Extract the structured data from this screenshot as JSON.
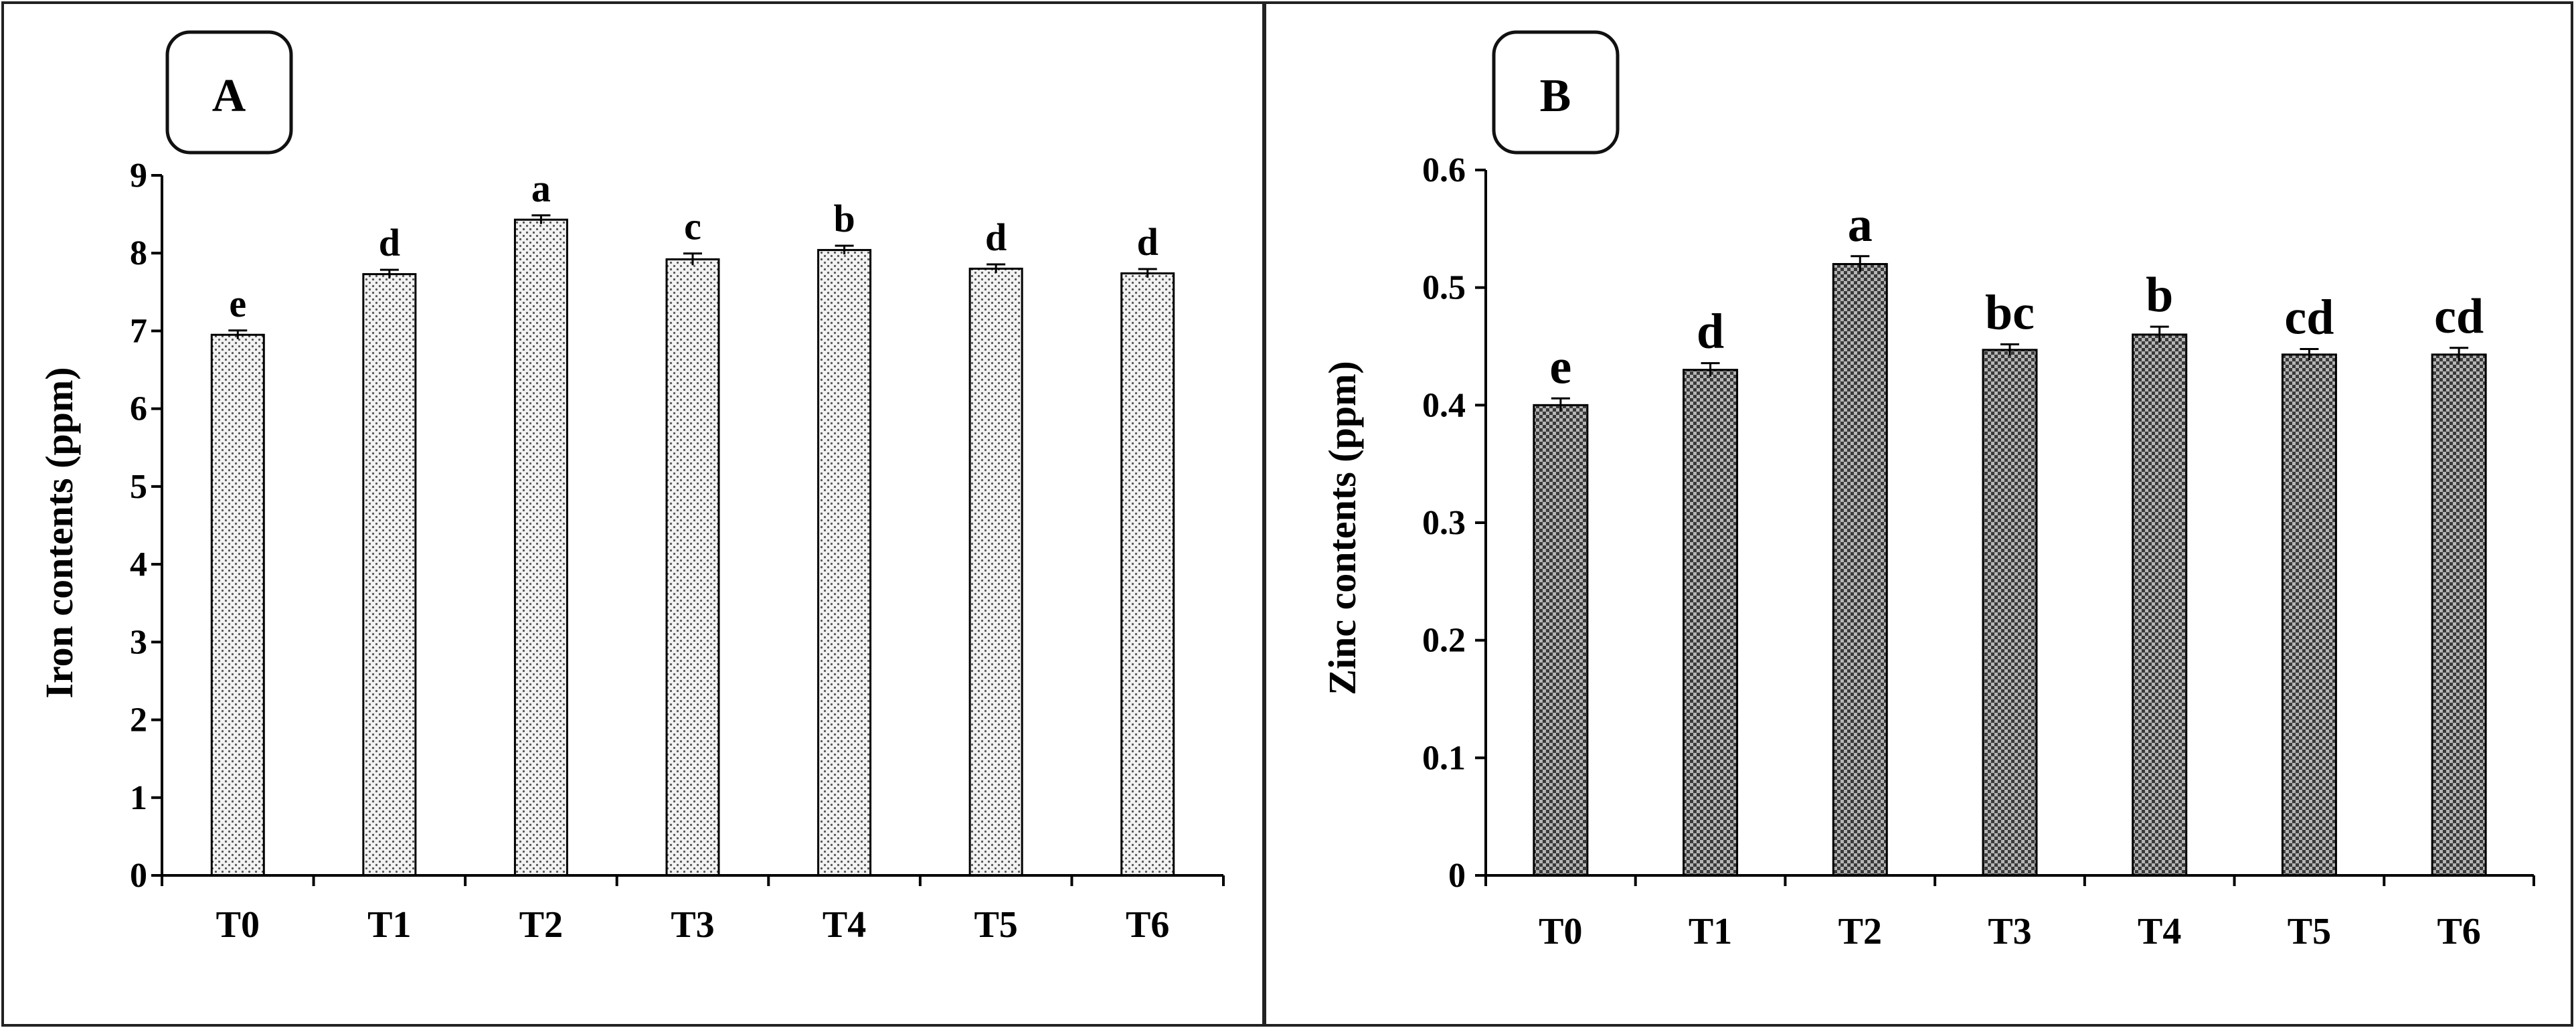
{
  "chart_data": [
    {
      "type": "bar",
      "panel_label": "A",
      "title": "",
      "xlabel": "",
      "ylabel": "Iron contents (ppm)",
      "categories": [
        "T0",
        "T1",
        "T2",
        "T3",
        "T4",
        "T5",
        "T6"
      ],
      "values": [
        6.95,
        7.73,
        8.43,
        7.92,
        8.04,
        7.8,
        7.74
      ],
      "errors": [
        0.03,
        0.03,
        0.03,
        0.05,
        0.03,
        0.03,
        0.03
      ],
      "significance": [
        "e",
        "d",
        "a",
        "c",
        "b",
        "d",
        "d"
      ],
      "ylim": [
        0,
        9
      ],
      "yticks": [
        "0",
        "1",
        "2",
        "3",
        "4",
        "5",
        "6",
        "7",
        "8",
        "9"
      ],
      "grid": false,
      "fill_color": "#efefef"
    },
    {
      "type": "bar",
      "panel_label": "B",
      "title": "",
      "xlabel": "",
      "ylabel": "Zinc contents (ppm)",
      "categories": [
        "T0",
        "T1",
        "T2",
        "T3",
        "T4",
        "T5",
        "T6"
      ],
      "values": [
        0.4,
        0.43,
        0.52,
        0.447,
        0.46,
        0.443,
        0.443
      ],
      "errors": [
        0.004,
        0.004,
        0.005,
        0.003,
        0.005,
        0.003,
        0.004
      ],
      "significance": [
        "e",
        "d",
        "a",
        "bc",
        "b",
        "cd",
        "cd"
      ],
      "ylim": [
        0,
        0.6
      ],
      "yticks": [
        "0",
        "0.1",
        "0.2",
        "0.3",
        "0.4",
        "0.5",
        "0.6"
      ],
      "grid": false,
      "fill_color": "#8c8c8c"
    }
  ]
}
